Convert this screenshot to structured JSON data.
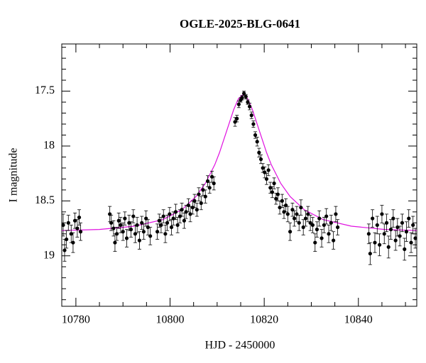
{
  "chart_data": {
    "type": "scatter",
    "title": "OGLE-2025-BLG-0641",
    "x_label": "HJD - 2450000",
    "y_label": "I magnitude",
    "xlim": [
      10777,
      10852.4
    ],
    "ylim": [
      19.46,
      17.07
    ],
    "xticks": [
      10780,
      10800,
      10820,
      10840
    ],
    "xminorticks": [
      10785,
      10790,
      10795,
      10805,
      10810,
      10815,
      10825,
      10830,
      10835,
      10845,
      10850
    ],
    "yticks": [
      17.5,
      18,
      18.5,
      19
    ],
    "yminorticks": [
      17.1,
      17.2,
      17.3,
      17.4,
      17.6,
      17.7,
      17.8,
      17.9,
      18.1,
      18.2,
      18.3,
      18.4,
      18.6,
      18.7,
      18.8,
      18.9,
      19.1,
      19.2,
      19.3,
      19.4
    ],
    "series": [
      {
        "kind": "points",
        "color": "#000000",
        "x": [
          10777.3,
          10777.6,
          10778,
          10778.4,
          10779,
          10779.4,
          10779.8,
          10780.3,
          10780.7,
          10781,
          10787.2,
          10787.5,
          10788,
          10788.3,
          10788.7,
          10789.1,
          10789.5,
          10790,
          10790.4,
          10790.8,
          10791.3,
          10791.7,
          10792.2,
          10792.6,
          10793,
          10793.5,
          10794,
          10794.4,
          10794.9,
          10795.3,
          10795.8,
          10797.3,
          10797.7,
          10798.1,
          10798.6,
          10799,
          10799.4,
          10799.9,
          10800.3,
          10800.7,
          10801.2,
          10801.6,
          10802.1,
          10802.5,
          10803,
          10803.4,
          10803.9,
          10804.3,
          10804.8,
          10805.2,
          10805.7,
          10806.1,
          10806.6,
          10807,
          10807.5,
          10808,
          10808.4,
          10808.9,
          10809.3,
          10813.8,
          10814.2,
          10814.6,
          10815,
          10815.3,
          10815.7,
          10816.1,
          10816.5,
          10816.9,
          10817.3,
          10817.7,
          10818.1,
          10818.5,
          10818.9,
          10819.3,
          10819.7,
          10820.1,
          10820.5,
          10820.9,
          10821.3,
          10821.7,
          10822.1,
          10822.5,
          10822.9,
          10823.3,
          10823.8,
          10824.2,
          10824.6,
          10825,
          10825.5,
          10826,
          10826.4,
          10826.9,
          10827.4,
          10827.8,
          10828.3,
          10828.8,
          10829.3,
          10829.8,
          10830.3,
          10830.8,
          10831.2,
          10831.7,
          10832.2,
          10832.7,
          10833.2,
          10833.7,
          10834.2,
          10834.7,
          10835.2,
          10835.6,
          10842.2,
          10842.5,
          10843,
          10843.5,
          10844,
          10844.5,
          10845,
          10845.5,
          10846,
          10846.4,
          10846.9,
          10847.4,
          10847.9,
          10848.3,
          10848.8,
          10849.3,
          10849.8,
          10850.2,
          10850.7,
          10851.2,
          10851.6,
          10852.1
        ],
        "values": [
          18.72,
          18.95,
          18.85,
          18.7,
          18.8,
          18.88,
          18.68,
          18.75,
          18.65,
          18.78,
          18.62,
          18.7,
          18.75,
          18.88,
          18.8,
          18.68,
          18.72,
          18.78,
          18.66,
          18.84,
          18.7,
          18.76,
          18.64,
          18.8,
          18.72,
          18.86,
          18.7,
          18.78,
          18.66,
          18.74,
          18.82,
          18.78,
          18.68,
          18.72,
          18.64,
          18.8,
          18.7,
          18.62,
          18.74,
          18.66,
          18.6,
          18.72,
          18.64,
          18.58,
          18.68,
          18.6,
          18.54,
          18.62,
          18.56,
          18.5,
          18.58,
          18.44,
          18.52,
          18.4,
          18.46,
          18.32,
          18.38,
          18.28,
          18.34,
          17.78,
          17.75,
          17.62,
          17.58,
          17.56,
          17.52,
          17.55,
          17.6,
          17.64,
          17.72,
          17.8,
          17.9,
          17.96,
          18.06,
          18.12,
          18.2,
          18.24,
          18.3,
          18.22,
          18.38,
          18.42,
          18.34,
          18.48,
          18.44,
          18.56,
          18.5,
          18.6,
          18.54,
          18.62,
          18.78,
          18.58,
          18.66,
          18.62,
          18.7,
          18.56,
          18.74,
          18.66,
          18.62,
          18.7,
          18.72,
          18.88,
          18.76,
          18.66,
          18.84,
          18.72,
          18.64,
          18.8,
          18.7,
          18.86,
          18.62,
          18.74,
          18.8,
          18.98,
          18.66,
          18.88,
          18.72,
          18.9,
          18.62,
          18.8,
          18.7,
          18.92,
          18.76,
          18.66,
          18.86,
          18.74,
          18.82,
          18.7,
          18.94,
          18.78,
          18.66,
          18.88,
          18.72,
          18.84
        ],
        "errors": [
          0.1,
          0.1,
          0.08,
          0.07,
          0.08,
          0.09,
          0.07,
          0.08,
          0.07,
          0.08,
          0.07,
          0.07,
          0.07,
          0.08,
          0.06,
          0.07,
          0.07,
          0.08,
          0.06,
          0.08,
          0.07,
          0.07,
          0.06,
          0.08,
          0.07,
          0.08,
          0.06,
          0.07,
          0.07,
          0.07,
          0.08,
          0.07,
          0.06,
          0.07,
          0.06,
          0.08,
          0.07,
          0.06,
          0.07,
          0.06,
          0.07,
          0.07,
          0.06,
          0.06,
          0.07,
          0.06,
          0.06,
          0.07,
          0.06,
          0.06,
          0.06,
          0.06,
          0.06,
          0.05,
          0.06,
          0.05,
          0.05,
          0.05,
          0.06,
          0.04,
          0.03,
          0.03,
          0.02,
          0.02,
          0.02,
          0.02,
          0.02,
          0.03,
          0.03,
          0.03,
          0.03,
          0.04,
          0.04,
          0.04,
          0.04,
          0.05,
          0.05,
          0.05,
          0.05,
          0.05,
          0.05,
          0.05,
          0.06,
          0.06,
          0.06,
          0.06,
          0.06,
          0.07,
          0.08,
          0.06,
          0.07,
          0.07,
          0.07,
          0.07,
          0.07,
          0.07,
          0.07,
          0.07,
          0.07,
          0.08,
          0.07,
          0.07,
          0.08,
          0.07,
          0.07,
          0.08,
          0.07,
          0.08,
          0.07,
          0.07,
          0.09,
          0.1,
          0.08,
          0.09,
          0.08,
          0.1,
          0.08,
          0.09,
          0.08,
          0.1,
          0.09,
          0.08,
          0.09,
          0.08,
          0.09,
          0.08,
          0.1,
          0.09,
          0.08,
          0.09,
          0.08,
          0.09
        ]
      },
      {
        "kind": "line",
        "color": "#e010e0",
        "x": [
          10777,
          10785,
          10792.5,
          10798.5,
          10802.5,
          10805.5,
          10807.5,
          10809.5,
          10810.5,
          10811.5,
          10812.5,
          10813.5,
          10814.5,
          10815.5,
          10816.5,
          10817.5,
          10818.5,
          10819.5,
          10820.5,
          10821.5,
          10823.5,
          10825.5,
          10828.5,
          10832.5,
          10838.5,
          10845.5,
          10852.4
        ],
        "values": [
          18.77,
          18.76,
          18.73,
          18.67,
          18.58,
          18.46,
          18.34,
          18.17,
          18.06,
          17.93,
          17.8,
          17.67,
          17.57,
          17.53,
          17.57,
          17.67,
          17.8,
          17.93,
          18.06,
          18.17,
          18.34,
          18.46,
          18.58,
          18.67,
          18.73,
          18.76,
          18.77
        ]
      }
    ]
  }
}
